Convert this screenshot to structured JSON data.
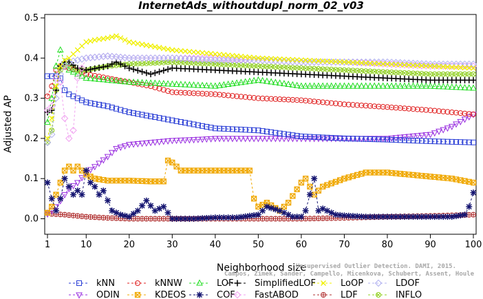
{
  "chart_data": {
    "type": "line",
    "title": "InternetAds_withoutdupl_norm_02_v03",
    "xlabel": "Neighborhood size",
    "ylabel": "Adjusted AP",
    "xlim": [
      1,
      100
    ],
    "ylim": [
      -0.03,
      0.5
    ],
    "xticks": [
      1,
      10,
      20,
      30,
      40,
      50,
      60,
      70,
      80,
      90,
      100
    ],
    "yticks": [
      0.0,
      0.1,
      0.2,
      0.3,
      0.4,
      0.5
    ],
    "grid": false,
    "legend_position": "bottom",
    "watermark": [
      "Unsupervised Outlier Detection. DAMI, 2015.",
      "Campos, Zimek, Sander, Campello, Micenkova, Schubert, Assent, Houle"
    ],
    "series": [
      {
        "name": "kNN",
        "color": "#2a3ed6",
        "marker": "square",
        "x": [
          1,
          2,
          3,
          4,
          5,
          6,
          8,
          10,
          15,
          20,
          30,
          40,
          50,
          60,
          70,
          80,
          90,
          100
        ],
        "values": [
          0.355,
          0.355,
          0.355,
          0.35,
          0.32,
          0.31,
          0.3,
          0.29,
          0.28,
          0.265,
          0.245,
          0.225,
          0.22,
          0.205,
          0.2,
          0.197,
          0.193,
          0.19
        ]
      },
      {
        "name": "kNNW",
        "color": "#e02020",
        "marker": "circle",
        "x": [
          1,
          2,
          3,
          4,
          5,
          6,
          8,
          10,
          15,
          20,
          25,
          30,
          40,
          50,
          60,
          70,
          80,
          90,
          100
        ],
        "values": [
          0.305,
          0.33,
          0.37,
          0.38,
          0.378,
          0.375,
          0.37,
          0.36,
          0.35,
          0.34,
          0.33,
          0.315,
          0.31,
          0.3,
          0.295,
          0.285,
          0.278,
          0.27,
          0.26
        ]
      },
      {
        "name": "LOF",
        "color": "#22dd22",
        "marker": "triangle-up",
        "x": [
          1,
          2,
          3,
          4,
          5,
          6,
          8,
          10,
          15,
          20,
          30,
          40,
          50,
          60,
          70,
          80,
          90,
          100
        ],
        "values": [
          0.24,
          0.3,
          0.38,
          0.42,
          0.39,
          0.37,
          0.36,
          0.35,
          0.345,
          0.34,
          0.335,
          0.33,
          0.345,
          0.33,
          0.33,
          0.33,
          0.33,
          0.325
        ]
      },
      {
        "name": "SimplifiedLOF",
        "color": "#000000",
        "marker": "plus",
        "x": [
          1,
          2,
          3,
          4,
          5,
          6,
          8,
          10,
          15,
          17,
          20,
          25,
          30,
          40,
          50,
          60,
          70,
          80,
          90,
          100
        ],
        "values": [
          0.265,
          0.27,
          0.32,
          0.38,
          0.39,
          0.39,
          0.375,
          0.37,
          0.38,
          0.39,
          0.375,
          0.36,
          0.375,
          0.37,
          0.365,
          0.36,
          0.355,
          0.35,
          0.345,
          0.345
        ]
      },
      {
        "name": "LoOP",
        "color": "#f0f000",
        "marker": "x",
        "x": [
          1,
          2,
          3,
          4,
          5,
          6,
          8,
          10,
          12,
          15,
          17,
          20,
          30,
          40,
          50,
          60,
          70,
          80,
          90,
          100
        ],
        "values": [
          0.2,
          0.25,
          0.33,
          0.38,
          0.395,
          0.4,
          0.42,
          0.44,
          0.445,
          0.45,
          0.455,
          0.44,
          0.42,
          0.41,
          0.4,
          0.395,
          0.39,
          0.385,
          0.38,
          0.375
        ]
      },
      {
        "name": "LDOF",
        "color": "#b0b0f0",
        "marker": "diamond",
        "x": [
          1,
          2,
          3,
          4,
          5,
          6,
          8,
          10,
          15,
          20,
          30,
          40,
          50,
          60,
          70,
          80,
          90,
          100
        ],
        "values": [
          0.19,
          0.21,
          0.3,
          0.36,
          0.38,
          0.39,
          0.395,
          0.4,
          0.405,
          0.4,
          0.4,
          0.395,
          0.395,
          0.39,
          0.39,
          0.39,
          0.385,
          0.385
        ]
      },
      {
        "name": "ODIN",
        "color": "#9a30e0",
        "marker": "triangle-down",
        "x": [
          1,
          2,
          3,
          4,
          5,
          6,
          8,
          10,
          12,
          15,
          17,
          20,
          25,
          30,
          35,
          40,
          50,
          60,
          70,
          80,
          90,
          95,
          100
        ],
        "values": [
          0.012,
          0.02,
          0.03,
          0.045,
          0.06,
          0.075,
          0.09,
          0.115,
          0.13,
          0.155,
          0.175,
          0.185,
          0.19,
          0.195,
          0.197,
          0.2,
          0.2,
          0.2,
          0.2,
          0.2,
          0.21,
          0.23,
          0.26
        ]
      },
      {
        "name": "KDEOS",
        "color": "#f0a800",
        "marker": "square-x",
        "x": [
          1,
          2,
          3,
          4,
          5,
          6,
          7,
          8,
          9,
          10,
          12,
          15,
          20,
          25,
          28,
          29,
          30,
          32,
          35,
          40,
          45,
          48,
          49,
          50,
          52,
          55,
          57,
          60,
          61,
          63,
          65,
          70,
          75,
          80,
          85,
          90,
          95,
          100
        ],
        "values": [
          0.015,
          0.03,
          0.06,
          0.09,
          0.12,
          0.13,
          0.12,
          0.13,
          0.12,
          0.11,
          0.1,
          0.095,
          0.095,
          0.093,
          0.093,
          0.145,
          0.14,
          0.12,
          0.12,
          0.12,
          0.12,
          0.12,
          0.05,
          0.03,
          0.04,
          0.02,
          0.04,
          0.09,
          0.1,
          0.06,
          0.08,
          0.1,
          0.115,
          0.115,
          0.11,
          0.105,
          0.1,
          0.09
        ]
      },
      {
        "name": "COF",
        "color": "#141470",
        "marker": "asterisk",
        "x": [
          1,
          2,
          3,
          4,
          5,
          6,
          7,
          8,
          9,
          10,
          11,
          12,
          13,
          14,
          15,
          16,
          18,
          20,
          22,
          24,
          26,
          28,
          30,
          35,
          40,
          45,
          50,
          52,
          55,
          58,
          60,
          61,
          62,
          63,
          64,
          65,
          68,
          70,
          75,
          80,
          85,
          90,
          95,
          98,
          99,
          100
        ],
        "values": [
          0.09,
          0.05,
          0.02,
          0.05,
          0.1,
          0.08,
          0.06,
          0.07,
          0.06,
          0.12,
          0.09,
          0.08,
          0.06,
          0.07,
          0.045,
          0.02,
          0.01,
          0.005,
          0.02,
          0.045,
          0.02,
          0.03,
          0.0,
          0.0,
          0.003,
          0.003,
          0.01,
          0.03,
          0.02,
          0.005,
          0.005,
          0.02,
          0.06,
          0.1,
          0.02,
          0.025,
          0.01,
          0.008,
          0.005,
          0.005,
          0.005,
          0.005,
          0.005,
          0.01,
          0.03,
          0.065
        ]
      },
      {
        "name": "FastABOD",
        "color": "#f0a0f0",
        "marker": "diamond",
        "x": [
          1,
          2,
          3,
          4,
          5,
          6,
          7,
          8,
          10,
          15,
          20,
          30,
          40,
          50,
          60,
          70,
          80,
          90,
          100
        ],
        "values": [
          0.27,
          0.28,
          0.35,
          0.34,
          0.25,
          0.2,
          0.22,
          0.35,
          0.4,
          0.405,
          0.4,
          0.4,
          0.4,
          0.395,
          0.39,
          0.39,
          0.385,
          0.38,
          0.38
        ]
      },
      {
        "name": "LDF",
        "color": "#b03030",
        "marker": "circle-plus",
        "x": [
          1,
          2,
          5,
          10,
          15,
          20,
          30,
          40,
          50,
          60,
          70,
          80,
          90,
          100
        ],
        "values": [
          0.015,
          0.012,
          0.01,
          0.005,
          0.002,
          0.0,
          0.0,
          0.0,
          0.0,
          0.0,
          0.002,
          0.005,
          0.007,
          0.01
        ]
      },
      {
        "name": "INFLO",
        "color": "#90d020",
        "marker": "circle-x",
        "x": [
          1,
          2,
          3,
          4,
          5,
          6,
          8,
          10,
          15,
          20,
          30,
          40,
          50,
          60,
          70,
          80,
          90,
          100
        ],
        "values": [
          0.19,
          0.22,
          0.32,
          0.37,
          0.38,
          0.385,
          0.37,
          0.37,
          0.38,
          0.385,
          0.39,
          0.385,
          0.38,
          0.375,
          0.37,
          0.365,
          0.36,
          0.36
        ]
      }
    ]
  }
}
